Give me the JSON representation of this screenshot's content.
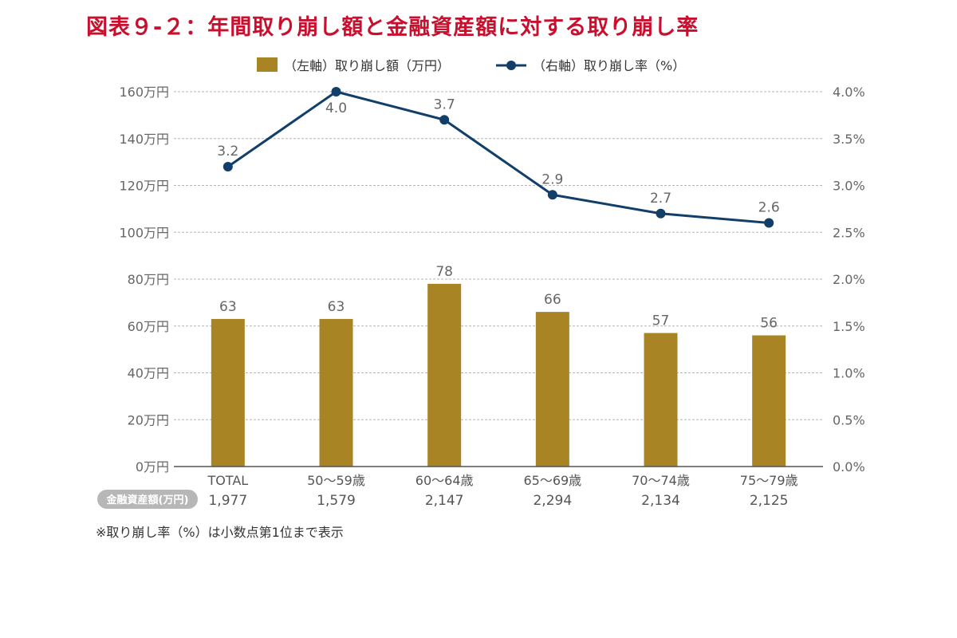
{
  "title": "図表９-２：年間取り崩し額と金融資産額に対する取り崩し率",
  "note": "※取り崩し率（%）は小数点第1位まで表示",
  "colors": {
    "bar": "#a88424",
    "line": "#123f6a",
    "title": "#c8102e",
    "grid": "#b5b5b5",
    "badge": "#b7b7b7"
  },
  "chart_data": {
    "type": "bar",
    "categories": [
      "TOTAL",
      "50〜59歳",
      "60〜64歳",
      "65〜69歳",
      "70〜74歳",
      "75〜79歳"
    ],
    "series": [
      {
        "name": "（左軸）取り崩し額（万円）",
        "type": "bar",
        "axis": "left",
        "values": [
          63,
          63,
          78,
          66,
          57,
          56
        ],
        "labels": [
          "63",
          "63",
          "78",
          "66",
          "57",
          "56"
        ]
      },
      {
        "name": "（右軸）取り崩し率（%）",
        "type": "line",
        "axis": "right",
        "values": [
          3.2,
          4.0,
          3.7,
          2.9,
          2.7,
          2.6
        ],
        "labels": [
          "3.2",
          "4.0",
          "3.7",
          "2.9",
          "2.7",
          "2.6"
        ]
      }
    ],
    "left_axis": {
      "range": [
        0,
        160
      ],
      "ticks": [
        "0万円",
        "20万円",
        "40万円",
        "60万円",
        "80万円",
        "100万円",
        "120万円",
        "140万円",
        "160万円"
      ]
    },
    "right_axis": {
      "range": [
        0,
        4.0
      ],
      "ticks": [
        "0.0%",
        "0.5%",
        "1.0%",
        "1.5%",
        "2.0%",
        "2.5%",
        "3.0%",
        "3.5%",
        "4.0%"
      ]
    },
    "grid": true,
    "legend_position": "top-center",
    "assets_label": "金融資産額(万円)",
    "assets_values": [
      "1,977",
      "1,579",
      "2,147",
      "2,294",
      "2,134",
      "2,125"
    ]
  }
}
